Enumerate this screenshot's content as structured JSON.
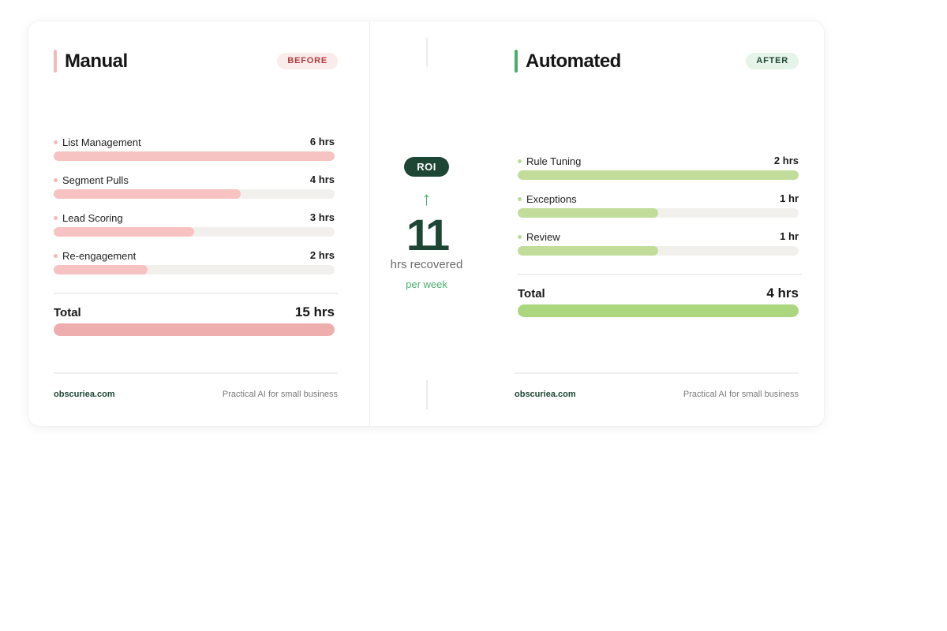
{
  "manual": {
    "title": "Manual",
    "badge": "BEFORE",
    "accent_color": "#f5b8b8",
    "tasks": [
      {
        "label": "List Management",
        "value": "6 hrs",
        "hours": 6
      },
      {
        "label": "Segment Pulls",
        "value": "4 hrs",
        "hours": 4
      },
      {
        "label": "Lead Scoring",
        "value": "3 hrs",
        "hours": 3
      },
      {
        "label": "Re-engagement",
        "value": "2 hrs",
        "hours": 2
      }
    ],
    "total_label": "Total",
    "total_value": "15 hrs",
    "total_hours": 15,
    "footer_site": "obscuriea.com",
    "footer_tagline": "Practical AI for small business"
  },
  "automated": {
    "title": "Automated",
    "badge": "AFTER",
    "accent_color": "#4aae6c",
    "tasks": [
      {
        "label": "Rule Tuning",
        "value": "2 hrs",
        "hours": 2
      },
      {
        "label": "Exceptions",
        "value": "1 hr",
        "hours": 1
      },
      {
        "label": "Review",
        "value": "1 hr",
        "hours": 1
      }
    ],
    "total_label": "Total",
    "total_value": "4 hrs",
    "total_hours": 4,
    "footer_site": "obscuriea.com",
    "footer_tagline": "Practical AI for small business"
  },
  "roi": {
    "badge": "ROI",
    "arrow_icon": "arrow-up-icon",
    "number": "11",
    "unit_label": "hrs recovered",
    "period_label": "per week"
  }
}
